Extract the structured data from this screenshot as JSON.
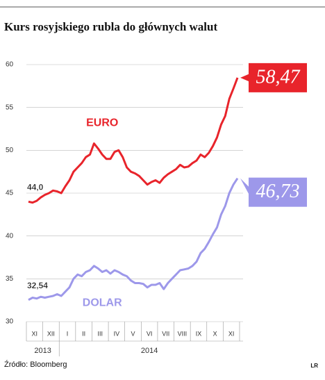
{
  "chart_data": {
    "type": "line",
    "title": "Kurs rosyjskiego rubla do głównych walut",
    "source": "Źródło: Bloomberg",
    "logo": "LR",
    "categories": [
      null,
      null,
      "XI",
      null,
      null,
      null,
      "XII",
      null,
      null,
      null,
      "I",
      null,
      null,
      null,
      "II",
      null,
      null,
      null,
      "III",
      null,
      null,
      null,
      "IV",
      null,
      null,
      null,
      "V",
      null,
      null,
      null,
      "VI",
      null,
      null,
      null,
      "VII",
      null,
      null,
      null,
      "VIII",
      null,
      null,
      null,
      "IX",
      null,
      null,
      null,
      "X",
      null,
      null,
      null,
      "XI",
      null
    ],
    "year_labels": [
      "2013",
      "2014"
    ],
    "series": [
      {
        "name": "EURO",
        "color": "#e8242b",
        "values": [
          44.0,
          43.9,
          44.1,
          44.5,
          44.8,
          45.0,
          45.3,
          45.2,
          45.0,
          45.8,
          46.5,
          47.5,
          48.0,
          48.5,
          49.2,
          49.5,
          50.8,
          50.2,
          49.5,
          49.0,
          49.0,
          49.8,
          50.0,
          49.2,
          48.0,
          47.5,
          47.3,
          47.0,
          46.5,
          46.0,
          46.3,
          46.5,
          46.2,
          46.8,
          47.2,
          47.5,
          47.8,
          48.3,
          48.0,
          48.1,
          48.5,
          48.8,
          49.5,
          49.2,
          49.7,
          50.5,
          51.5,
          53.0,
          54.0,
          56.0,
          57.2,
          58.47
        ],
        "value_labels": [
          "44,0",
          null,
          null,
          null,
          null,
          null,
          null,
          null,
          null,
          null,
          null,
          null,
          null,
          null,
          null,
          null,
          null,
          null,
          null,
          null,
          null,
          null,
          null,
          null,
          null,
          null,
          null,
          null,
          null,
          null,
          null,
          null,
          null,
          null,
          null,
          null,
          null,
          null,
          null,
          null,
          null,
          null,
          null,
          null,
          null,
          null,
          null,
          null,
          null,
          null,
          null,
          "58,47"
        ]
      },
      {
        "name": "DOLAR",
        "color": "#9d98ea",
        "values": [
          32.54,
          32.8,
          32.7,
          32.9,
          32.8,
          32.9,
          33.0,
          33.2,
          33.0,
          33.5,
          34.0,
          35.0,
          35.5,
          35.3,
          35.8,
          36.0,
          36.5,
          36.2,
          35.8,
          36.0,
          35.6,
          36.0,
          35.8,
          35.5,
          35.3,
          34.8,
          34.5,
          34.5,
          34.4,
          34.0,
          34.3,
          34.3,
          34.5,
          33.8,
          34.5,
          35.0,
          35.5,
          36.0,
          36.1,
          36.2,
          36.5,
          37.0,
          38.0,
          38.5,
          39.3,
          40.2,
          41.0,
          42.5,
          43.5,
          45.0,
          46.0,
          46.73
        ],
        "value_labels": [
          "32,54",
          null,
          null,
          null,
          null,
          null,
          null,
          null,
          null,
          null,
          null,
          null,
          null,
          null,
          null,
          null,
          null,
          null,
          null,
          null,
          null,
          null,
          null,
          null,
          null,
          null,
          null,
          null,
          null,
          null,
          null,
          null,
          null,
          null,
          null,
          null,
          null,
          null,
          null,
          null,
          null,
          null,
          null,
          null,
          null,
          null,
          null,
          null,
          null,
          null,
          null,
          "46,73"
        ]
      }
    ],
    "ylim": [
      30,
      60
    ],
    "yticks": [
      30,
      35,
      40,
      45,
      50,
      55,
      60
    ],
    "grid": true
  }
}
